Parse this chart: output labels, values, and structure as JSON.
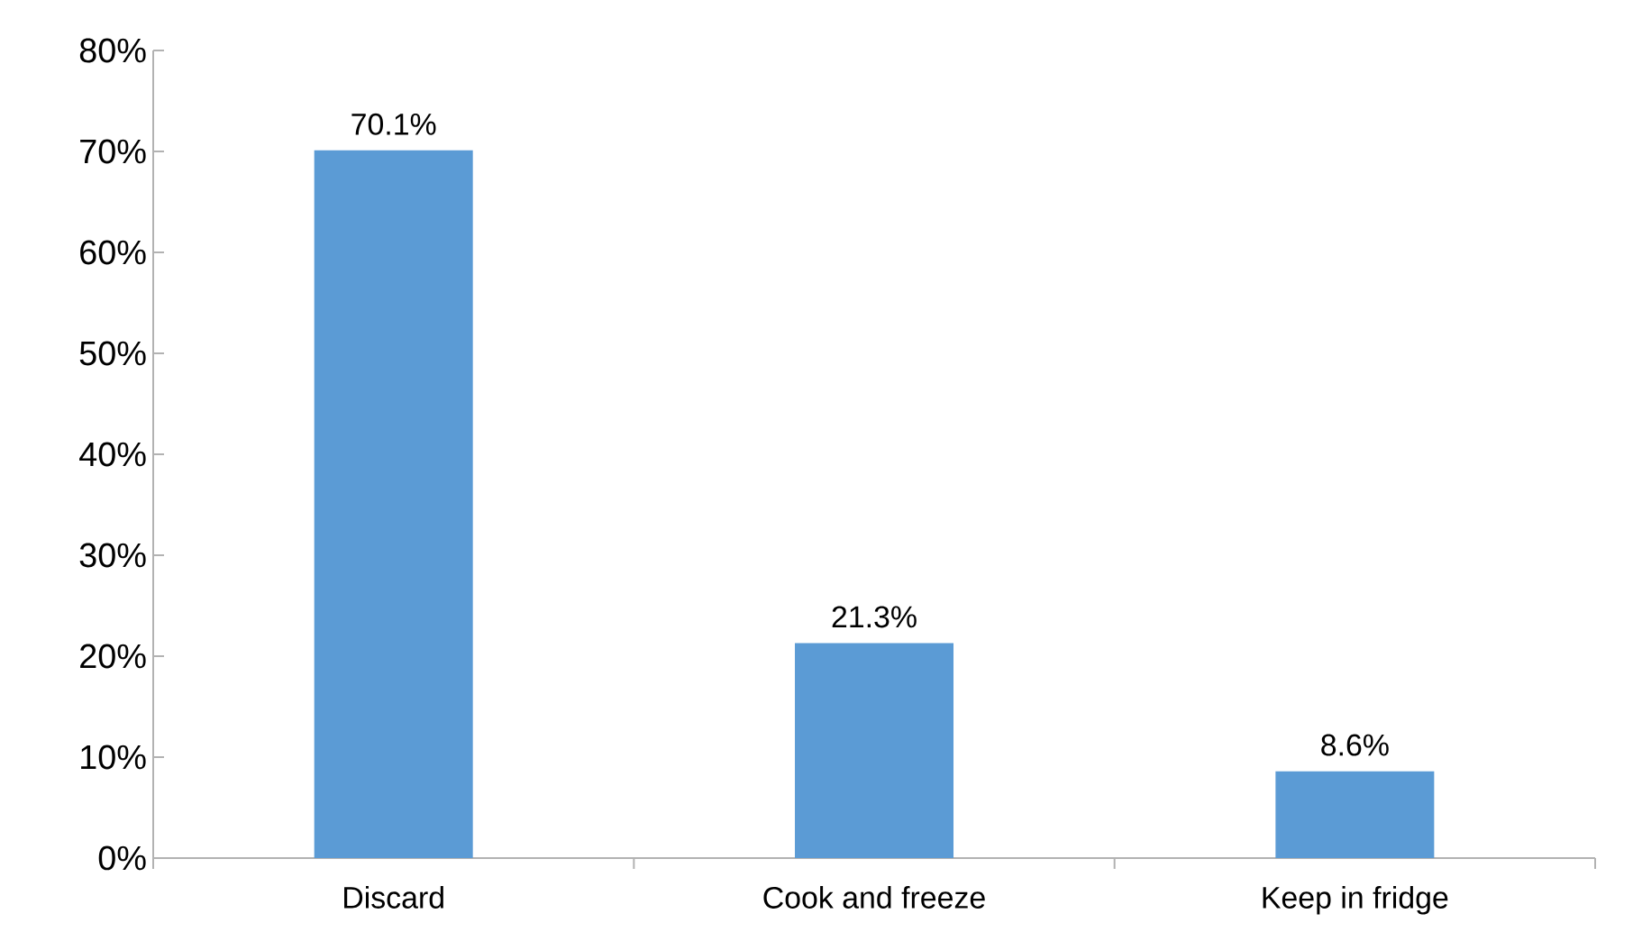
{
  "chart_data": {
    "type": "bar",
    "categories": [
      "Discard",
      "Cook and freeze",
      "Keep in fridge"
    ],
    "values": [
      70.1,
      21.3,
      8.6
    ],
    "value_labels": [
      "70.1%",
      "21.3%",
      "8.6%"
    ],
    "color": "#5b9bd5",
    "ylim": [
      0,
      80
    ],
    "yticks": [
      {
        "value": 0,
        "label": "0%"
      },
      {
        "value": 10,
        "label": "10%"
      },
      {
        "value": 20,
        "label": "20%"
      },
      {
        "value": 30,
        "label": "30%"
      },
      {
        "value": 40,
        "label": "40%"
      },
      {
        "value": 50,
        "label": "50%"
      },
      {
        "value": 60,
        "label": "60%"
      },
      {
        "value": 70,
        "label": "70%"
      },
      {
        "value": 80,
        "label": "80%"
      }
    ],
    "grid": false
  }
}
